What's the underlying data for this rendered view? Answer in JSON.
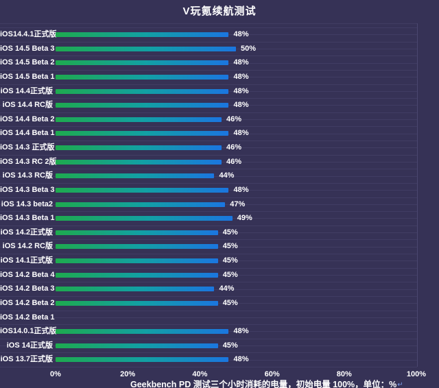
{
  "title": "V玩氪续航测试",
  "caption": {
    "spellcheck_word": "Geekbench",
    "rest": " PD 测试三个小时消耗的电量，初始电量 100%，单位：%",
    "return_mark": "↵"
  },
  "colors": {
    "background": "#363256",
    "gridline": "#413d63",
    "plot_border": "#4b4770",
    "bar_gradient_start": "#1eaa4e",
    "bar_gradient_mid": "#12a0a4",
    "bar_gradient_end": "#1b76e0",
    "text": "#ffffff",
    "spellcheck_underline": "#e8271f",
    "return_mark": "#7d9ce8"
  },
  "chart_data": {
    "type": "bar",
    "orientation": "horizontal",
    "title": "V玩氪续航测试",
    "unit": "%",
    "xlim": [
      0,
      100
    ],
    "x_tick_labels": [
      "0%",
      "20%",
      "40%",
      "60%",
      "80%",
      "100%"
    ],
    "grid": true,
    "legend": false,
    "categories": [
      "iOS14.4.1正式版",
      "iOS 14.5 Beta 3",
      "iOS 14.5 Beta 2",
      "iOS 14.5 Beta 1",
      "iOS 14.4正式版",
      "iOS 14.4 RC版",
      "iOS 14.4 Beta 2",
      "iOS 14.4 Beta 1",
      "iOS 14.3 正式版",
      "iOS 14.3 RC 2版",
      "iOS 14.3 RC版",
      "iOS 14.3 Beta 3",
      "iOS 14.3 beta2",
      "iOS 14.3 Beta 1",
      "iOS 14.2正式版",
      "iOS 14.2 RC版",
      "iOS 14.1正式版",
      "iOS 14.2 Beta 4",
      "iOS 14.2 Beta 3",
      "iOS 14.2 Beta 2",
      "iOS 14.2 Beta 1",
      "iOS14.0.1正式版",
      "iOS 14正式版",
      "iOS 13.7正式版"
    ],
    "values": [
      48,
      50,
      48,
      48,
      48,
      48,
      46,
      48,
      46,
      46,
      44,
      48,
      47,
      49,
      45,
      45,
      45,
      45,
      44,
      45,
      null,
      48,
      45,
      48
    ],
    "value_labels": [
      "48%",
      "50%",
      "48%",
      "48%",
      "48%",
      "48%",
      "46%",
      "48%",
      "46%",
      "46%",
      "44%",
      "48%",
      "47%",
      "49%",
      "45%",
      "45%",
      "45%",
      "45%",
      "44%",
      "45%",
      "",
      "48%",
      "45%",
      "48%"
    ]
  }
}
